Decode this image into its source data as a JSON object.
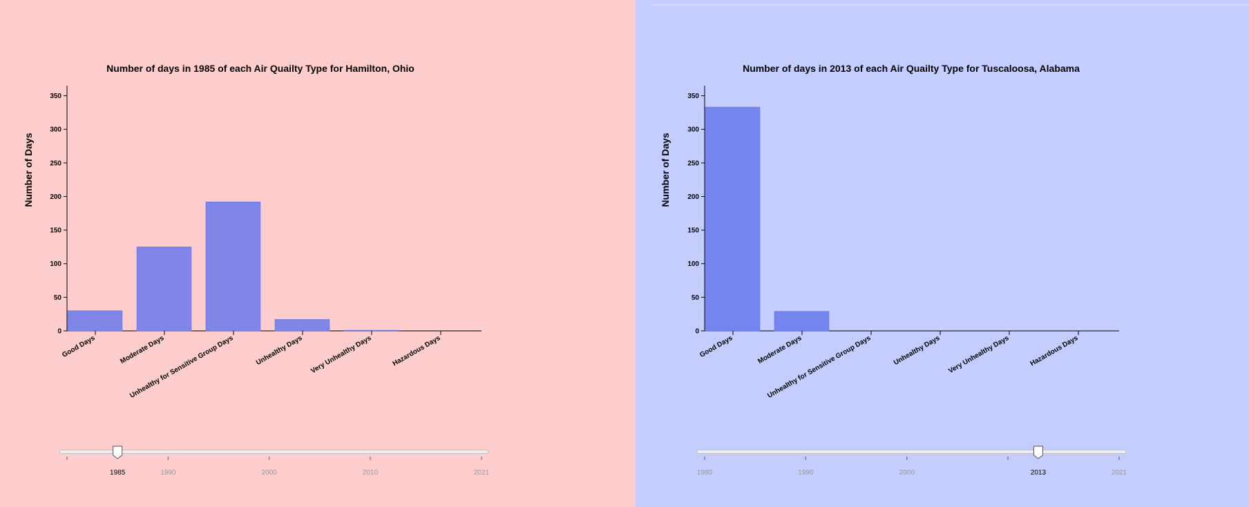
{
  "colors": {
    "left_bg": "#fecece",
    "right_bg": "#c4cdfe",
    "left_bar": "#7f86e8",
    "right_bar": "#7485ef"
  },
  "chart_data": [
    {
      "type": "bar",
      "title": "Number of days in 1985 of each Air Quailty Type for Hamilton, Ohio",
      "xlabel": "",
      "ylabel": "Number of Days",
      "categories": [
        "Good Days",
        "Moderate Days",
        "Unhealthy for Sensitive Group Days",
        "Unhealthy Days",
        "Very Unhealthy Days",
        "Hazardous Days"
      ],
      "values": [
        30,
        125,
        192,
        17,
        1,
        0
      ],
      "ylim": [
        0,
        365
      ],
      "yticks": [
        "0",
        "50",
        "100",
        "150",
        "200",
        "250",
        "300",
        "350"
      ],
      "grid": false,
      "slider": {
        "labels": [
          "1985",
          "1990",
          "2000",
          "2010",
          "2021"
        ],
        "selected": "1985"
      }
    },
    {
      "type": "bar",
      "title": "Number of days in 2013 of each Air Quailty Type for Tuscaloosa, Alabama",
      "xlabel": "",
      "ylabel": "Number of Days",
      "categories": [
        "Good Days",
        "Moderate Days",
        "Unhealthy for Sensitive Group Days",
        "Unhealthy Days",
        "Very Unhealthy Days",
        "Hazardous Days"
      ],
      "values": [
        333,
        29,
        0,
        0,
        0,
        0
      ],
      "ylim": [
        0,
        365
      ],
      "yticks": [
        "0",
        "50",
        "100",
        "150",
        "200",
        "250",
        "300",
        "350"
      ],
      "grid": false,
      "slider": {
        "labels": [
          "1980",
          "1990",
          "2000",
          "2013",
          "2021"
        ],
        "selected": "2013"
      }
    }
  ]
}
